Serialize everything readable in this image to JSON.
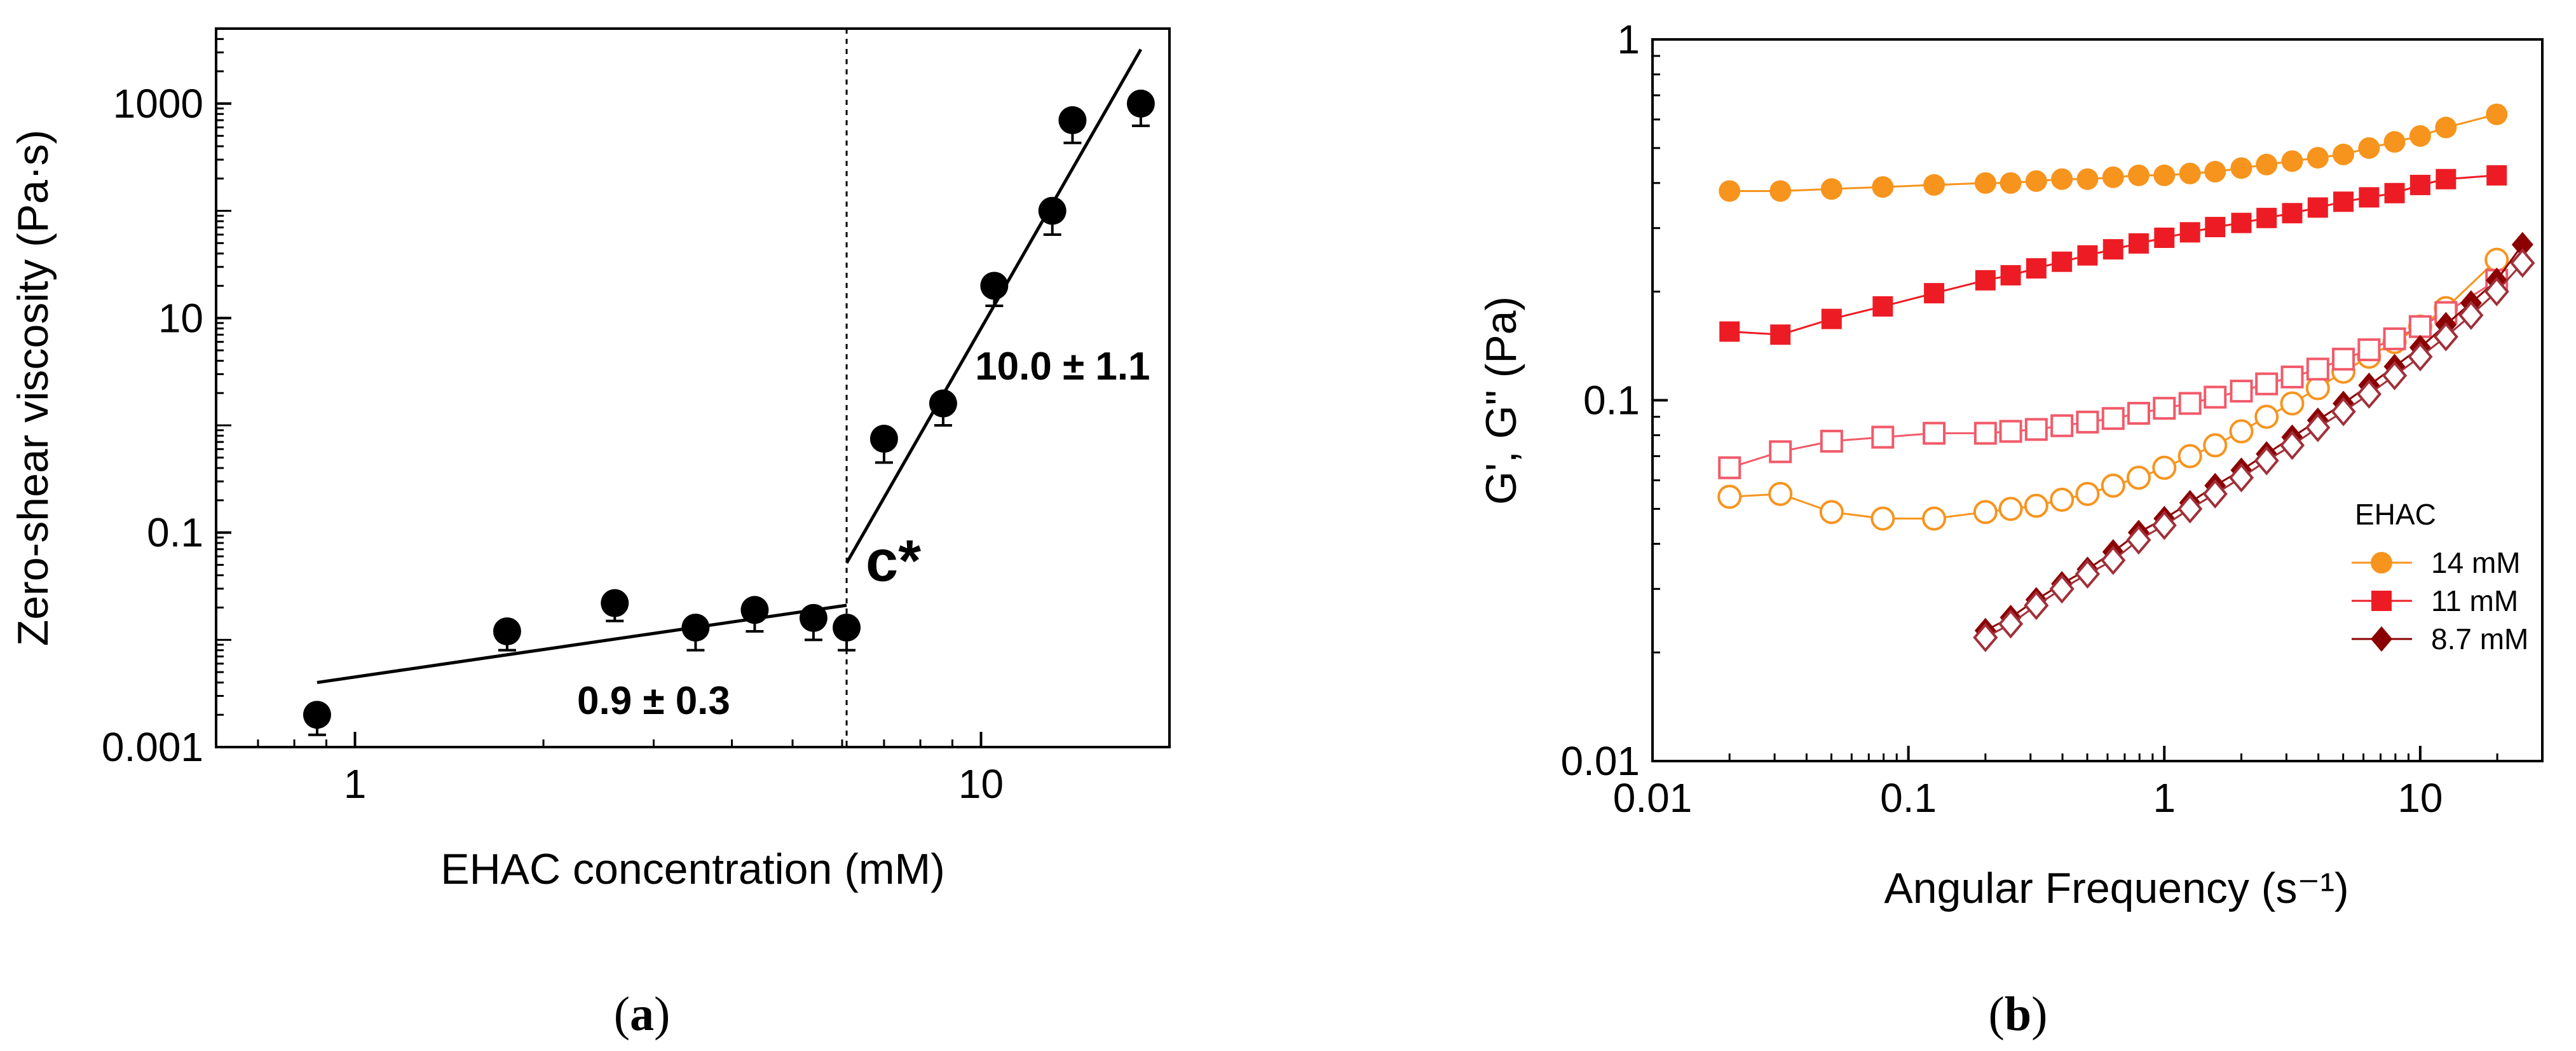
{
  "chart_data": [
    {
      "type": "scatter",
      "panel_label": "(a)",
      "panel_letter": "a",
      "xlabel": "EHAC concentration (mM)",
      "ylabel": "Zero-shear viscosity (Pa·s)",
      "xscale": "log",
      "yscale": "log",
      "xlim": [
        0.6,
        20
      ],
      "ylim": [
        0.001,
        5000
      ],
      "xticks": [
        {
          "value": 1,
          "label": "1"
        },
        {
          "value": 10,
          "label": "10"
        }
      ],
      "yticks": [
        {
          "value": 0.001,
          "label": "0.001"
        },
        {
          "value": 0.1,
          "label": "0.1"
        },
        {
          "value": 10,
          "label": "10"
        },
        {
          "value": 1000,
          "label": "1000"
        }
      ],
      "points": [
        {
          "x": 0.87,
          "y": 0.002,
          "err": 0.0007
        },
        {
          "x": 1.75,
          "y": 0.012,
          "err": 0.004
        },
        {
          "x": 2.6,
          "y": 0.022,
          "err": 0.007
        },
        {
          "x": 3.5,
          "y": 0.013,
          "err": 0.005
        },
        {
          "x": 4.35,
          "y": 0.019,
          "err": 0.007
        },
        {
          "x": 5.4,
          "y": 0.016,
          "err": 0.006
        },
        {
          "x": 6.1,
          "y": 0.013,
          "err": 0.005
        },
        {
          "x": 7.0,
          "y": 0.75,
          "err": 0.3
        },
        {
          "x": 8.7,
          "y": 1.6,
          "err": 0.6
        },
        {
          "x": 10.5,
          "y": 20,
          "err": 7
        },
        {
          "x": 13.0,
          "y": 100,
          "err": 40
        },
        {
          "x": 14.0,
          "y": 700,
          "err": 270
        },
        {
          "x": 18.0,
          "y": 1000,
          "err": 380
        }
      ],
      "fits": [
        {
          "x": [
            0.87,
            6.1
          ],
          "y": [
            0.004,
            0.021
          ],
          "slope_label": "0.9 ± 0.3"
        },
        {
          "x": [
            6.1,
            18.0
          ],
          "y": [
            0.052,
            3200
          ],
          "slope_label": "10.0 ± 1.1"
        }
      ],
      "crossover": {
        "x": 6.1,
        "label": "c*"
      }
    },
    {
      "type": "line",
      "panel_label": "(b)",
      "panel_letter": "b",
      "xlabel": "Angular Frequency (s⁻¹)",
      "ylabel": "G', G\" (Pa)",
      "xscale": "log",
      "yscale": "log",
      "xlim": [
        0.01,
        30
      ],
      "ylim": [
        0.01,
        1
      ],
      "xticks": [
        {
          "value": 0.01,
          "label": "0.01"
        },
        {
          "value": 0.1,
          "label": "0.1"
        },
        {
          "value": 1,
          "label": "1"
        },
        {
          "value": 10,
          "label": "10"
        }
      ],
      "yticks": [
        {
          "value": 0.01,
          "label": "0.01"
        },
        {
          "value": 0.1,
          "label": "0.1"
        },
        {
          "value": 1,
          "label": "1"
        }
      ],
      "legend_title": "EHAC",
      "legend_position": "lower-right",
      "series": [
        {
          "name": "14 mM",
          "modulus": "G'",
          "color": "#f7941d",
          "marker": "circle",
          "filled": true,
          "x": [
            0.02,
            0.0316,
            0.0501,
            0.0794,
            0.126,
            0.2,
            0.251,
            0.316,
            0.398,
            0.501,
            0.631,
            0.794,
            1.0,
            1.26,
            1.58,
            2.0,
            2.51,
            3.16,
            3.98,
            5.01,
            6.31,
            7.94,
            10.0,
            12.6,
            19.9
          ],
          "y": [
            0.38,
            0.38,
            0.385,
            0.39,
            0.395,
            0.4,
            0.4,
            0.405,
            0.41,
            0.41,
            0.415,
            0.42,
            0.42,
            0.425,
            0.43,
            0.44,
            0.45,
            0.46,
            0.47,
            0.48,
            0.5,
            0.52,
            0.54,
            0.57,
            0.62
          ]
        },
        {
          "name": "14 mM",
          "modulus": "G\"",
          "color": "#f7941d",
          "marker": "circle",
          "filled": false,
          "x": [
            0.02,
            0.0316,
            0.0501,
            0.0794,
            0.126,
            0.2,
            0.251,
            0.316,
            0.398,
            0.501,
            0.631,
            0.794,
            1.0,
            1.26,
            1.58,
            2.0,
            2.51,
            3.16,
            3.98,
            5.01,
            6.31,
            7.94,
            10.0,
            12.6,
            19.9
          ],
          "y": [
            0.054,
            0.055,
            0.049,
            0.047,
            0.047,
            0.049,
            0.05,
            0.051,
            0.053,
            0.055,
            0.058,
            0.061,
            0.065,
            0.07,
            0.075,
            0.082,
            0.09,
            0.098,
            0.108,
            0.12,
            0.132,
            0.145,
            0.16,
            0.18,
            0.245
          ]
        },
        {
          "name": "11 mM",
          "modulus": "G'",
          "color": "#ed1c24",
          "marker": "square",
          "filled": true,
          "x": [
            0.02,
            0.0316,
            0.0501,
            0.0794,
            0.126,
            0.2,
            0.251,
            0.316,
            0.398,
            0.501,
            0.631,
            0.794,
            1.0,
            1.26,
            1.58,
            2.0,
            2.51,
            3.16,
            3.98,
            5.01,
            6.31,
            7.94,
            10.0,
            12.6,
            19.9
          ],
          "y": [
            0.155,
            0.152,
            0.168,
            0.182,
            0.198,
            0.215,
            0.222,
            0.232,
            0.242,
            0.252,
            0.262,
            0.272,
            0.282,
            0.292,
            0.302,
            0.31,
            0.32,
            0.33,
            0.342,
            0.355,
            0.365,
            0.375,
            0.395,
            0.41,
            0.42
          ]
        },
        {
          "name": "11 mM",
          "modulus": "G\"",
          "color": "#f15a6a",
          "marker": "square",
          "filled": false,
          "x": [
            0.02,
            0.0316,
            0.0501,
            0.0794,
            0.126,
            0.2,
            0.251,
            0.316,
            0.398,
            0.501,
            0.631,
            0.794,
            1.0,
            1.26,
            1.58,
            2.0,
            2.51,
            3.16,
            3.98,
            5.01,
            6.31,
            7.94,
            10.0,
            12.6,
            19.9
          ],
          "y": [
            0.065,
            0.072,
            0.077,
            0.079,
            0.081,
            0.081,
            0.082,
            0.083,
            0.085,
            0.087,
            0.089,
            0.092,
            0.095,
            0.098,
            0.102,
            0.106,
            0.111,
            0.116,
            0.122,
            0.13,
            0.138,
            0.148,
            0.16,
            0.175,
            0.215
          ]
        },
        {
          "name": "8.7 mM",
          "modulus": "G'",
          "color": "#8b0000",
          "marker": "diamond",
          "filled": true,
          "x": [
            0.2,
            0.251,
            0.316,
            0.398,
            0.501,
            0.631,
            0.794,
            1.0,
            1.26,
            1.58,
            2.0,
            2.51,
            3.16,
            3.98,
            5.01,
            6.31,
            7.94,
            10.0,
            12.6,
            15.8,
            19.9,
            25.1
          ],
          "y": [
            0.023,
            0.025,
            0.028,
            0.031,
            0.034,
            0.038,
            0.043,
            0.047,
            0.052,
            0.058,
            0.064,
            0.071,
            0.079,
            0.088,
            0.098,
            0.11,
            0.124,
            0.14,
            0.162,
            0.186,
            0.215,
            0.27
          ]
        },
        {
          "name": "8.7 mM",
          "modulus": "G\"",
          "color": "#a0303a",
          "marker": "diamond",
          "filled": false,
          "x": [
            0.2,
            0.251,
            0.316,
            0.398,
            0.501,
            0.631,
            0.794,
            1.0,
            1.26,
            1.58,
            2.0,
            2.51,
            3.16,
            3.98,
            5.01,
            6.31,
            7.94,
            10.0,
            12.6,
            15.8,
            19.9,
            25.1
          ],
          "y": [
            0.022,
            0.024,
            0.027,
            0.03,
            0.033,
            0.036,
            0.041,
            0.045,
            0.05,
            0.055,
            0.061,
            0.068,
            0.075,
            0.084,
            0.093,
            0.104,
            0.117,
            0.132,
            0.15,
            0.172,
            0.2,
            0.24
          ]
        }
      ],
      "legend": [
        {
          "label": "14 mM",
          "color": "#f7941d",
          "marker": "circle"
        },
        {
          "label": "11 mM",
          "color": "#ed1c24",
          "marker": "square"
        },
        {
          "label": "8.7 mM",
          "color": "#8b0000",
          "marker": "diamond"
        }
      ]
    }
  ]
}
